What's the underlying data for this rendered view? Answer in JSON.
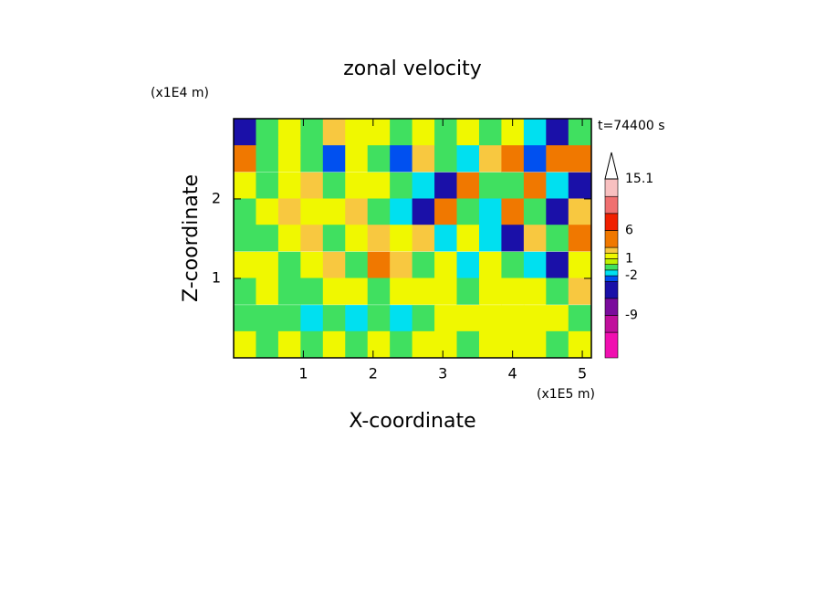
{
  "chart_data": {
    "type": "contour",
    "title": "zonal velocity",
    "x_label": "X-coordinate",
    "y_label": "Z-coordinate",
    "x_unit": "(x1E5 m)",
    "y_unit": "(x1E4 m)",
    "annotation": "t=74400 s",
    "xlim": [
      0,
      5.13
    ],
    "ylim": [
      0,
      3.01
    ],
    "xticks": [
      1,
      2,
      3,
      4,
      5
    ],
    "yticks": [
      1,
      2
    ],
    "x": [
      0.16,
      0.48,
      0.8,
      1.12,
      1.44,
      1.76,
      2.08,
      2.4,
      2.72,
      3.04,
      3.36,
      3.68,
      4.0,
      4.32,
      4.64,
      4.96
    ],
    "y": [
      2.84,
      2.51,
      2.17,
      1.84,
      1.51,
      1.17,
      0.84,
      0.5,
      0.17
    ],
    "z": [
      [
        -4,
        -0.5,
        1.5,
        -0.5,
        2.5,
        1.5,
        1.5,
        -0.5,
        1.5,
        -0.5,
        1.5,
        -0.5,
        1.5,
        -1.5,
        -4,
        -0.5
      ],
      [
        4,
        -0.5,
        1.5,
        -0.5,
        -2.5,
        1.5,
        -0.5,
        -2.5,
        2.5,
        -0.5,
        -1.5,
        2.5,
        4,
        -2.5,
        4,
        4
      ],
      [
        1.5,
        -0.5,
        1.5,
        2.5,
        -0.5,
        1.5,
        1.5,
        -0.5,
        -1.5,
        -4,
        4,
        -0.5,
        -0.5,
        4,
        -1.5,
        -4
      ],
      [
        -0.5,
        1.5,
        2.5,
        1.5,
        1.5,
        2.5,
        -0.5,
        -1.5,
        -4,
        4,
        -0.5,
        -1.5,
        4,
        -0.5,
        -4,
        2.5
      ],
      [
        -0.5,
        -0.5,
        1.5,
        2.5,
        -0.5,
        1.5,
        2.5,
        1.5,
        2.5,
        -1.5,
        1.5,
        -1.5,
        -4,
        2.5,
        -0.5,
        4
      ],
      [
        1.5,
        1.5,
        -0.5,
        1.5,
        2.5,
        -0.5,
        4,
        2.5,
        -0.5,
        1.5,
        -1.5,
        1.5,
        -0.5,
        -1.5,
        -4,
        1.5
      ],
      [
        -0.5,
        1.5,
        -0.5,
        -0.5,
        1.5,
        1.5,
        -0.5,
        1.5,
        1.5,
        1.5,
        -0.5,
        1.5,
        1.5,
        1.5,
        -0.5,
        2.5
      ],
      [
        -0.5,
        -0.5,
        -0.5,
        -1.5,
        -0.5,
        -1.5,
        -0.5,
        -1.5,
        -0.5,
        1.5,
        1.5,
        1.5,
        1.5,
        1.5,
        1.5,
        -0.5
      ],
      [
        1.5,
        -0.5,
        1.5,
        -0.5,
        1.5,
        -0.5,
        1.5,
        -0.5,
        1.5,
        1.5,
        -0.5,
        1.5,
        1.5,
        1.5,
        -0.5,
        1.5
      ]
    ],
    "levels": [
      -16.5,
      -12,
      -9,
      -6,
      -3,
      -2,
      -1,
      0,
      1,
      2,
      3,
      6,
      9,
      12,
      15.1
    ],
    "colors": [
      "#f010b0",
      "#c0109c",
      "#7a0c9c",
      "#1a10a8",
      "#0050f0",
      "#00e0f0",
      "#40e060",
      "#c0f000",
      "#f0f800",
      "#f8c840",
      "#f07800",
      "#f02000",
      "#f07070",
      "#f8c0c0"
    ],
    "colorbar_ticks": [
      15.1,
      6,
      1,
      -2,
      -9
    ]
  }
}
